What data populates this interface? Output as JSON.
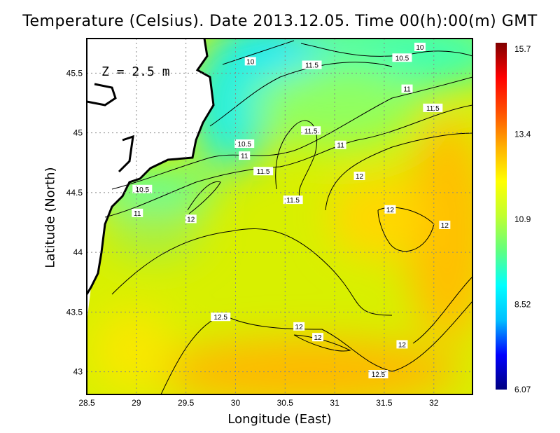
{
  "chart_data": {
    "type": "heatmap",
    "title": "Temperature (Celsius). Date 2013.12.05. Time 00(h):00(m) GMT",
    "xlabel": "Longitude (East)",
    "ylabel": "Latitude (North)",
    "annotation": "Z = 2.5 m",
    "xlim": [
      28.5,
      32.39
    ],
    "ylim": [
      42.81,
      45.79
    ],
    "x_ticks": [
      "28.5",
      "29",
      "29.5",
      "30",
      "30.5",
      "31",
      "31.5",
      "32"
    ],
    "y_ticks": [
      "43",
      "43.5",
      "44",
      "44.5",
      "45",
      "45.5"
    ],
    "grid": true,
    "colorbar": {
      "range": [
        6.07,
        15.7
      ],
      "ticks": [
        "6.07",
        "8.52",
        "10.9",
        "13.4",
        "15.7"
      ],
      "colormap": [
        "#00007f",
        "#0000ff",
        "#00bfff",
        "#00ffff",
        "#60ff80",
        "#c0ff30",
        "#ffff00",
        "#ffb000",
        "#ff5000",
        "#ff0000",
        "#7f0000"
      ]
    },
    "contour_labels": [
      {
        "text": "10",
        "lon": 30.15,
        "lat": 45.6
      },
      {
        "text": "10.5",
        "lon": 31.68,
        "lat": 45.63
      },
      {
        "text": "10",
        "lon": 31.86,
        "lat": 45.72
      },
      {
        "text": "11.5",
        "lon": 30.77,
        "lat": 45.57
      },
      {
        "text": "11",
        "lon": 31.73,
        "lat": 45.37
      },
      {
        "text": "11.5",
        "lon": 31.99,
        "lat": 45.21
      },
      {
        "text": "11.5",
        "lon": 30.76,
        "lat": 45.02
      },
      {
        "text": "10.5",
        "lon": 30.09,
        "lat": 44.91
      },
      {
        "text": "11",
        "lon": 30.09,
        "lat": 44.81
      },
      {
        "text": "11.5",
        "lon": 30.28,
        "lat": 44.68
      },
      {
        "text": "11",
        "lon": 31.06,
        "lat": 44.9
      },
      {
        "text": "12",
        "lon": 31.25,
        "lat": 44.64
      },
      {
        "text": "10.5",
        "lon": 29.06,
        "lat": 44.53
      },
      {
        "text": "11",
        "lon": 29.01,
        "lat": 44.33
      },
      {
        "text": "12",
        "lon": 29.55,
        "lat": 44.28
      },
      {
        "text": "11.5",
        "lon": 30.58,
        "lat": 44.44
      },
      {
        "text": "12",
        "lon": 31.56,
        "lat": 44.36
      },
      {
        "text": "12",
        "lon": 32.11,
        "lat": 44.23
      },
      {
        "text": "12.5",
        "lon": 29.85,
        "lat": 43.46
      },
      {
        "text": "12",
        "lon": 30.64,
        "lat": 43.38
      },
      {
        "text": "12",
        "lon": 30.83,
        "lat": 43.29
      },
      {
        "text": "12",
        "lon": 31.68,
        "lat": 43.23
      },
      {
        "text": "12.5",
        "lon": 31.44,
        "lat": 42.98
      }
    ]
  }
}
